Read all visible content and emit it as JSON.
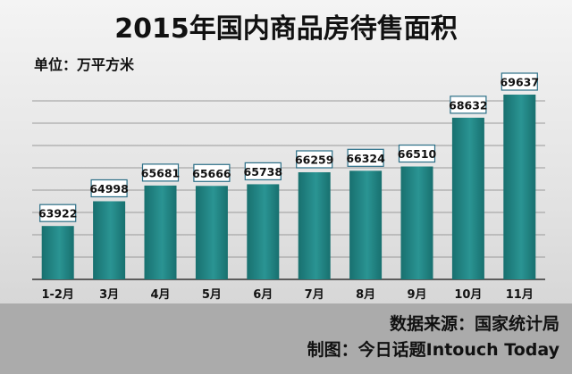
{
  "chart_data": {
    "type": "bar",
    "title": "2015年国内商品房待售面积",
    "unit_label": "单位：万平方米",
    "categories": [
      "1-2月",
      "3月",
      "4月",
      "5月",
      "6月",
      "7月",
      "8月",
      "9月",
      "10月",
      "11月"
    ],
    "values": [
      63922,
      64998,
      65681,
      65666,
      65738,
      66259,
      66324,
      66510,
      68632,
      69637
    ],
    "ylim": [
      61600,
      71500
    ],
    "grid": true,
    "bar_color": "#1f8080",
    "bar_highlight": "#49b2b0",
    "label_border": "#2a6e86"
  },
  "footer": {
    "source": "数据来源：国家统计局",
    "credit": "制图：今日话题Intouch Today"
  }
}
